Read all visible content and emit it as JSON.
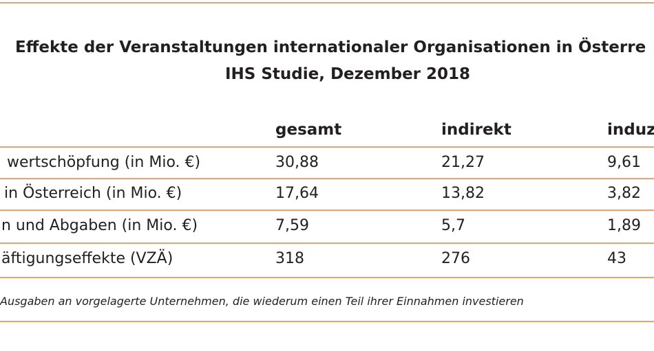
{
  "header": {
    "title": "Effekte der Veranstaltungen internationaler Organisationen in Österre",
    "subtitle": "IHS Studie, Dezember 2018"
  },
  "table": {
    "columns": [
      "gesamt",
      "indirekt",
      "induz"
    ],
    "rows": [
      [
        "wertschöpfung (in Mio. €)",
        "30,88",
        "21,27",
        "9,61"
      ],
      [
        "in Österreich (in Mio. €)",
        "17,64",
        "13,82",
        "3,82"
      ],
      [
        "n und Abgaben (in Mio. €)",
        "7,59",
        "5,7",
        "1,89"
      ],
      [
        "äftigungseffekte (VZÄ)",
        "318",
        "276",
        "43"
      ]
    ]
  },
  "footnote": "Ausgaben an vorgelagerte Unternehmen, die wiederum einen Teil ihrer Einnahmen investieren"
}
